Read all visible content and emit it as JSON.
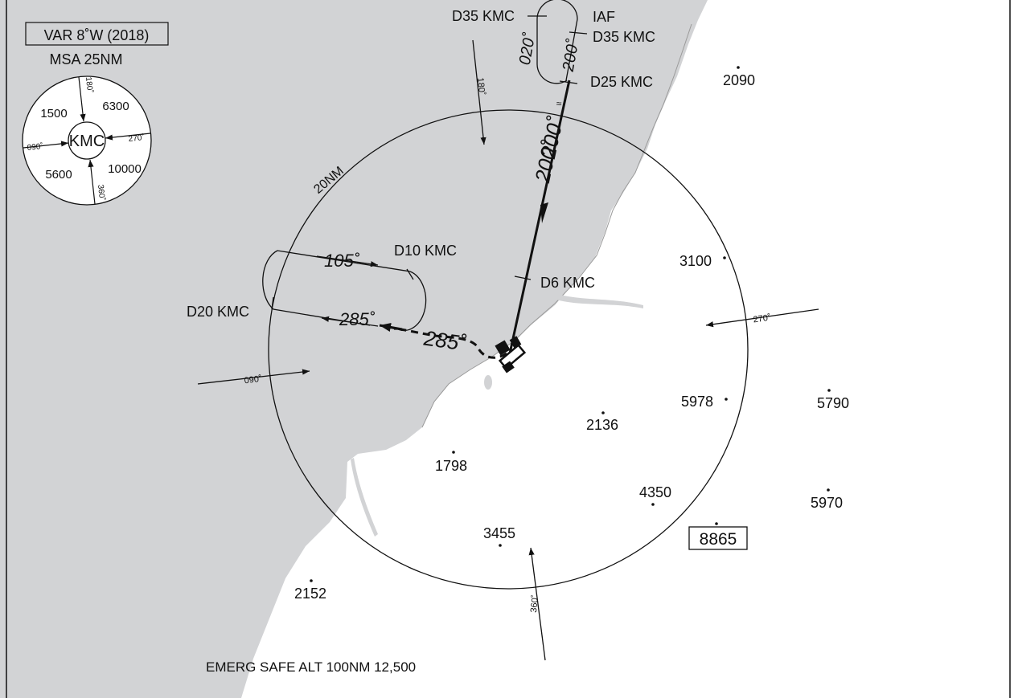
{
  "variation": "VAR 8˚W (2018)",
  "msa": {
    "title": "MSA 25NM",
    "navaid": "KMC",
    "sector_altitudes": [
      "1500",
      "6300",
      "5600",
      "10000"
    ],
    "boundary_bearings": [
      "180˚",
      "090˚",
      "270˚",
      "360˚"
    ]
  },
  "fixes": {
    "d35_left": "D35 KMC",
    "iaf": "IAF",
    "d35_right": "D35 KMC",
    "d25": "D25 KMC",
    "d10": "D10 KMC",
    "d6": "D6 KMC",
    "d20": "D20 KMC"
  },
  "tracks": {
    "hold_outbound": "020˚",
    "hold_inbound": "200˚",
    "inbound_upper": "200˚",
    "inbound_main": "200˚",
    "procedure_outbound": "105˚",
    "procedure_inbound": "285˚",
    "missed_approach": "285˚"
  },
  "range_ring": "20NM",
  "sector_arrows": {
    "north": "180˚",
    "east": "270˚",
    "west": "090˚",
    "south": "360˚"
  },
  "spot_heights": [
    "2090",
    "3100",
    "5978",
    "5790",
    "2136",
    "1798",
    "4350",
    "5970",
    "3455",
    "2152"
  ],
  "highest_elevation": "8865",
  "emergency_safe_altitude": "EMERG SAFE ALT 100NM 12,500",
  "colors": {
    "sea": "#d2d3d5",
    "land": "#ffffff",
    "ink": "#111111"
  }
}
